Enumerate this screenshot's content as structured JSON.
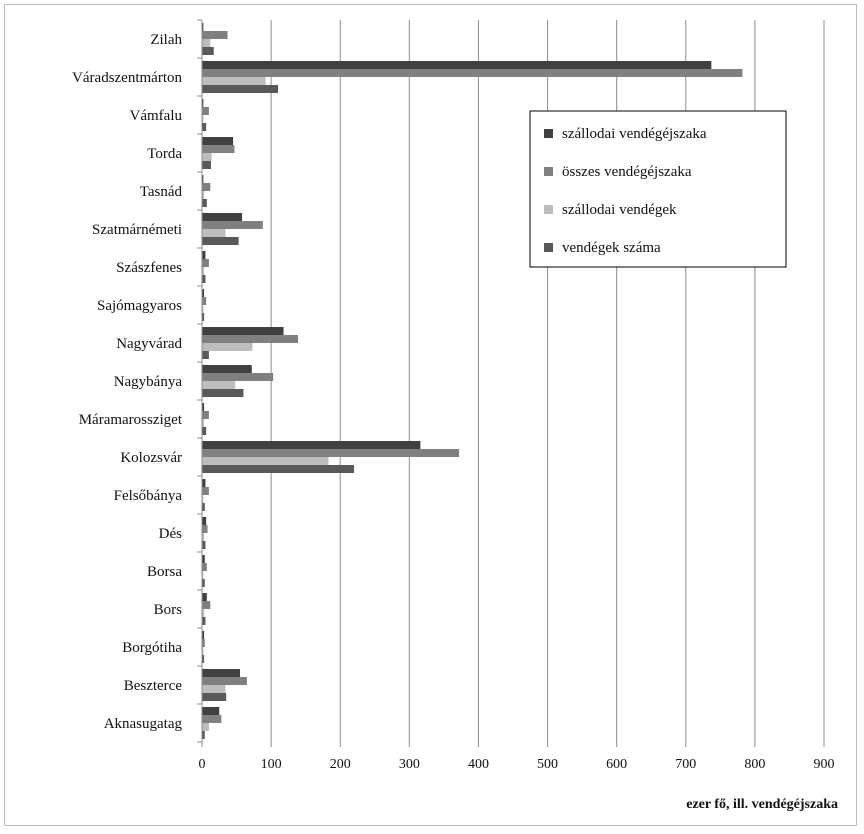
{
  "chart_data": {
    "type": "bar",
    "orientation": "horizontal",
    "categories": [
      "Zilah",
      "Váradszentmárton",
      "Vámfalu",
      "Torda",
      "Tasnád",
      "Szatmárnémeti",
      "Szászfenes",
      "Sajómagyaros",
      "Nagyvárad",
      "Nagybánya",
      "Máramarossziget",
      "Kolozsvár",
      "Felsőbánya",
      "Dés",
      "Borsa",
      "Bors",
      "Borgótiha",
      "Beszterce",
      "Aknasugatag"
    ],
    "series": [
      {
        "name": "szállodai vendégéjszaka",
        "color": "#404040",
        "values": [
          2,
          737,
          2,
          45,
          2,
          58,
          5,
          3,
          118,
          72,
          3,
          316,
          5,
          6,
          4,
          7,
          3,
          55,
          25
        ]
      },
      {
        "name": "összes vendégéjszaka",
        "color": "#808080",
        "values": [
          37,
          782,
          10,
          47,
          12,
          88,
          10,
          6,
          139,
          103,
          10,
          372,
          10,
          8,
          7,
          12,
          4,
          65,
          28
        ]
      },
      {
        "name": "szállodai vendégek",
        "color": "#bdbdbd",
        "values": [
          12,
          92,
          2,
          14,
          3,
          34,
          3,
          2,
          73,
          48,
          3,
          183,
          2,
          3,
          2,
          3,
          2,
          34,
          10
        ]
      },
      {
        "name": "vendégek száma",
        "color": "#595959",
        "values": [
          17,
          110,
          6,
          13,
          7,
          53,
          5,
          3,
          10,
          60,
          6,
          220,
          4,
          5,
          4,
          5,
          3,
          35,
          4
        ]
      }
    ],
    "x_ticks": [
      "0",
      "100",
      "200",
      "300",
      "400",
      "500",
      "600",
      "700",
      "800",
      "900"
    ],
    "xlim": [
      0,
      900
    ],
    "xlabel": "ezer fő, ill. vendégéjszaka",
    "grid": "vertical gridlines",
    "legend_position": "top-right, inside plot"
  }
}
